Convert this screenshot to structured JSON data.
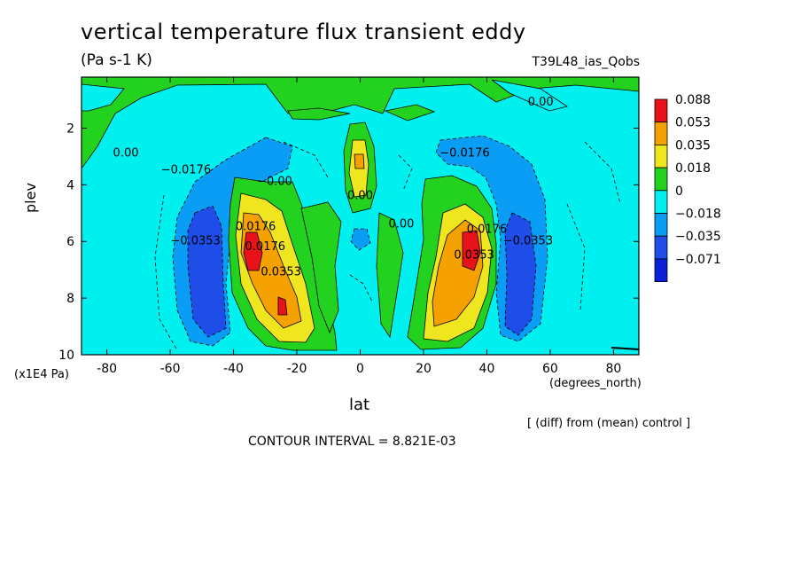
{
  "chart_data": {
    "type": "heatmap",
    "title": "vertical temperature flux transient eddy",
    "units_label": "(Pa s-1 K)",
    "experiment_label": "T39L48_ias_Qobs",
    "xlabel": "lat",
    "x_units": "(degrees_north)",
    "ylabel": "plev",
    "y_units": "(x1E4 Pa)",
    "xlim": [
      -88,
      88
    ],
    "ylim": [
      10,
      0.2
    ],
    "x_ticks": [
      -80,
      -60,
      -40,
      -20,
      0,
      20,
      40,
      60,
      80
    ],
    "y_ticks": [
      2,
      4,
      6,
      8,
      10
    ],
    "diff_note": "[ (diff) from (mean) control ]",
    "contour_interval_text": "CONTOUR INTERVAL = 8.821E-03",
    "colorbar": {
      "labels": [
        "0.088",
        "0.053",
        "0.035",
        "0.018",
        "0",
        "−0.018",
        "−0.035",
        "−0.071"
      ],
      "colors": [
        "#e8121a",
        "#f5a200",
        "#f0e620",
        "#23d21f",
        "#00f0f0",
        "#0a9df5",
        "#1f4de8",
        "#0a20d8"
      ]
    },
    "features": [
      {
        "kind": "min",
        "lat": -50,
        "plev": 6.5,
        "value": "-0.0353"
      },
      {
        "kind": "min",
        "lat": 50,
        "plev": 6.5,
        "value": "-0.0353"
      },
      {
        "kind": "max",
        "lat": -36,
        "plev": 6.5,
        "value": "0.088"
      },
      {
        "kind": "max",
        "lat": -26,
        "plev": 8.3,
        "value": "0.088"
      },
      {
        "kind": "max",
        "lat": 36,
        "plev": 6.2,
        "value": "0.088"
      },
      {
        "kind": "max",
        "lat": 0,
        "plev": 3.2,
        "value": "0.035"
      }
    ],
    "contour_labels": [
      {
        "text": "0.00",
        "lat": -74,
        "plev": 3.0
      },
      {
        "text": "−0.0176",
        "lat": -55,
        "plev": 3.6
      },
      {
        "text": "−0.00",
        "lat": -27,
        "plev": 4.0
      },
      {
        "text": "−0.0353",
        "lat": -52,
        "plev": 6.1
      },
      {
        "text": "0.0176",
        "lat": -33,
        "plev": 5.6
      },
      {
        "text": "0.0176",
        "lat": -30,
        "plev": 6.3
      },
      {
        "text": "0.0353",
        "lat": -25,
        "plev": 7.2
      },
      {
        "text": "0.00",
        "lat": 0,
        "plev": 4.5
      },
      {
        "text": "0.00",
        "lat": 13,
        "plev": 5.5
      },
      {
        "text": "−0.0176",
        "lat": 33,
        "plev": 3.0
      },
      {
        "text": "0.0176",
        "lat": 40,
        "plev": 5.7
      },
      {
        "text": "0.0353",
        "lat": 36,
        "plev": 6.6
      },
      {
        "text": "−0.0353",
        "lat": 53,
        "plev": 6.1
      },
      {
        "text": "0.00",
        "lat": 57,
        "plev": 1.2
      }
    ]
  }
}
